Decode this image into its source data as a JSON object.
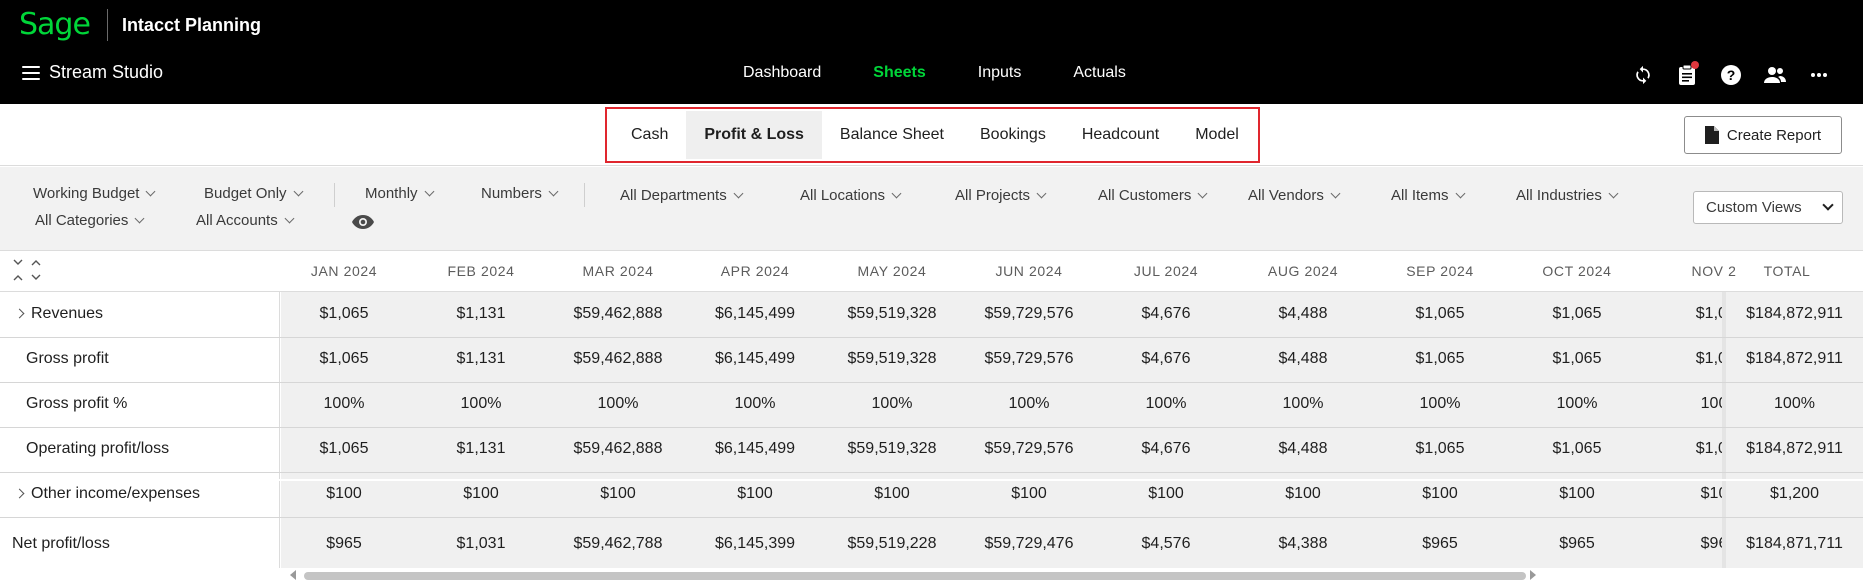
{
  "brand": {
    "logo": "Sage",
    "product": "Intacct Planning"
  },
  "workspace": {
    "title": "Stream Studio"
  },
  "nav": {
    "items": [
      {
        "label": "Dashboard",
        "active": false
      },
      {
        "label": "Sheets",
        "active": true
      },
      {
        "label": "Inputs",
        "active": false
      },
      {
        "label": "Actuals",
        "active": false
      }
    ]
  },
  "top_icons": [
    "sync-icon",
    "clipboard-icon",
    "help-icon",
    "users-icon",
    "more-icon"
  ],
  "tabs": {
    "items": [
      {
        "label": "Cash",
        "active": false
      },
      {
        "label": "Profit & Loss",
        "active": true
      },
      {
        "label": "Balance Sheet",
        "active": false
      },
      {
        "label": "Bookings",
        "active": false
      },
      {
        "label": "Headcount",
        "active": false
      },
      {
        "label": "Model",
        "active": false
      }
    ],
    "highlight_color": "#e0262e"
  },
  "create_report": {
    "label": "Create Report"
  },
  "filters": {
    "row1": [
      "Working Budget",
      "Budget Only",
      "Monthly",
      "Numbers",
      "All Departments",
      "All Locations",
      "All Projects",
      "All Customers",
      "All Vendors",
      "All Items",
      "All Industries"
    ],
    "row2": [
      "All Categories",
      "All Accounts"
    ],
    "custom_views": "Custom Views"
  },
  "grid": {
    "months": [
      "JAN 2024",
      "FEB 2024",
      "MAR 2024",
      "APR 2024",
      "MAY 2024",
      "JUN 2024",
      "JUL 2024",
      "AUG 2024",
      "SEP 2024",
      "OCT 2024",
      "NOV 2"
    ],
    "total_header": "TOTAL",
    "rows": [
      {
        "label": "Revenues",
        "expandable": true,
        "values": [
          "$1,065",
          "$1,131",
          "$59,462,888",
          "$6,145,499",
          "$59,519,328",
          "$59,729,576",
          "$4,676",
          "$4,488",
          "$1,065",
          "$1,065",
          "$1,0("
        ],
        "total": "$184,872,911"
      },
      {
        "label": "Gross profit",
        "expandable": false,
        "values": [
          "$1,065",
          "$1,131",
          "$59,462,888",
          "$6,145,499",
          "$59,519,328",
          "$59,729,576",
          "$4,676",
          "$4,488",
          "$1,065",
          "$1,065",
          "$1,0("
        ],
        "total": "$184,872,911"
      },
      {
        "label": "Gross profit %",
        "expandable": false,
        "values": [
          "100%",
          "100%",
          "100%",
          "100%",
          "100%",
          "100%",
          "100%",
          "100%",
          "100%",
          "100%",
          "100"
        ],
        "total": "100%"
      },
      {
        "label": "Operating profit/loss",
        "expandable": false,
        "values": [
          "$1,065",
          "$1,131",
          "$59,462,888",
          "$6,145,499",
          "$59,519,328",
          "$59,729,576",
          "$4,676",
          "$4,488",
          "$1,065",
          "$1,065",
          "$1,0("
        ],
        "total": "$184,872,911"
      },
      {
        "label": "Other income/expenses",
        "expandable": true,
        "values": [
          "$100",
          "$100",
          "$100",
          "$100",
          "$100",
          "$100",
          "$100",
          "$100",
          "$100",
          "$100",
          "$10"
        ],
        "total": "$1,200"
      },
      {
        "label": "Net profit/loss",
        "expandable": false,
        "values": [
          "$965",
          "$1,031",
          "$59,462,788",
          "$6,145,399",
          "$59,519,228",
          "$59,729,476",
          "$4,576",
          "$4,388",
          "$965",
          "$965",
          "$96"
        ],
        "total": "$184,871,711"
      }
    ]
  },
  "colors": {
    "brand_green": "#00d639",
    "topbar_bg": "#000000",
    "notification": "#e0383e"
  }
}
